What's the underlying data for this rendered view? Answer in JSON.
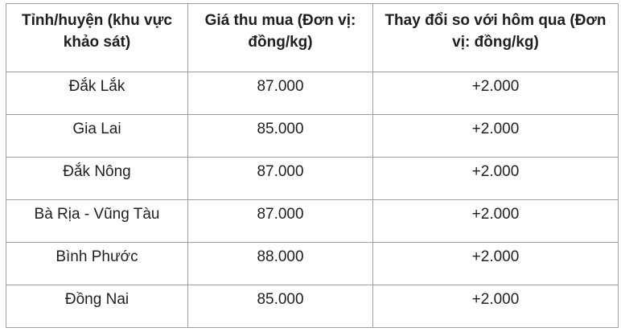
{
  "colors": {
    "background": "#ffffff",
    "border": "#9e9e9e",
    "text": "#1f1f1f"
  },
  "table": {
    "headers": [
      "Tỉnh/huyện (khu vực khảo sát)",
      "Giá thu mua (Đơn vị: đồng/kg)",
      "Thay đổi so với hôm qua (Đơn vị: đồng/kg)"
    ],
    "rows": [
      [
        "Đắk Lắk",
        "87.000",
        "+2.000"
      ],
      [
        "Gia Lai",
        "85.000",
        "+2.000"
      ],
      [
        "Đắk Nông",
        "87.000",
        "+2.000"
      ],
      [
        "Bà Rịa - Vũng Tàu",
        "87.000",
        "+2.000"
      ],
      [
        "Bình Phước",
        "88.000",
        "+2.000"
      ],
      [
        "Đồng Nai",
        "85.000",
        "+2.000"
      ]
    ]
  },
  "chart_data": {
    "type": "table",
    "title": "",
    "columns": [
      "Tỉnh/huyện (khu vực khảo sát)",
      "Giá thu mua (Đơn vị: đồng/kg)",
      "Thay đổi so với hôm qua (Đơn vị: đồng/kg)"
    ],
    "categories": [
      "Đắk Lắk",
      "Gia Lai",
      "Đắk Nông",
      "Bà Rịa - Vũng Tàu",
      "Bình Phước",
      "Đồng Nai"
    ],
    "series": [
      {
        "name": "Giá thu mua (đồng/kg)",
        "values": [
          87000,
          85000,
          87000,
          87000,
          88000,
          85000
        ]
      },
      {
        "name": "Thay đổi so với hôm qua (đồng/kg)",
        "values": [
          2000,
          2000,
          2000,
          2000,
          2000,
          2000
        ]
      }
    ]
  }
}
